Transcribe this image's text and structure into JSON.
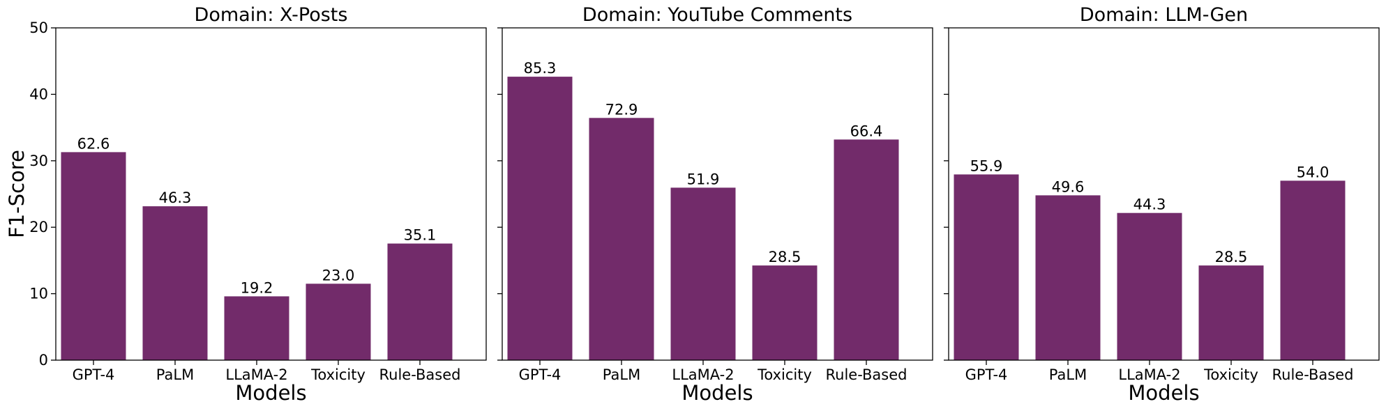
{
  "chart_data": [
    {
      "type": "bar",
      "title": "Domain: X-Posts",
      "xlabel": "Models",
      "ylabel": "F1-Score",
      "ylim": [
        0,
        50
      ],
      "yticks": [
        0,
        10,
        20,
        30,
        40,
        50
      ],
      "categories": [
        "GPT-4",
        "PaLM",
        "LLaMA-2",
        "Toxicity",
        "Rule-Based"
      ],
      "values": [
        31.3,
        23.15,
        9.6,
        11.5,
        17.55
      ],
      "labels": [
        "62.6",
        "46.3",
        "19.2",
        "23.0",
        "35.1"
      ],
      "color": "#722b6a"
    },
    {
      "type": "bar",
      "title": "Domain: YouTube Comments",
      "xlabel": "Models",
      "ylabel": "",
      "ylim": [
        0,
        50
      ],
      "yticks": [
        0,
        10,
        20,
        30,
        40,
        50
      ],
      "categories": [
        "GPT-4",
        "PaLM",
        "LLaMA-2",
        "Toxicity",
        "Rule-Based"
      ],
      "values": [
        42.65,
        36.45,
        25.95,
        14.25,
        33.2
      ],
      "labels": [
        "85.3",
        "72.9",
        "51.9",
        "28.5",
        "66.4"
      ],
      "color": "#722b6a"
    },
    {
      "type": "bar",
      "title": "Domain: LLM-Gen",
      "xlabel": "Models",
      "ylabel": "",
      "ylim": [
        0,
        50
      ],
      "yticks": [
        0,
        10,
        20,
        30,
        40,
        50
      ],
      "categories": [
        "GPT-4",
        "PaLM",
        "LLaMA-2",
        "Toxicity",
        "Rule-Based"
      ],
      "values": [
        27.95,
        24.8,
        22.15,
        14.25,
        27.0
      ],
      "labels": [
        "55.9",
        "49.6",
        "44.3",
        "28.5",
        "54.0"
      ],
      "color": "#722b6a"
    }
  ]
}
